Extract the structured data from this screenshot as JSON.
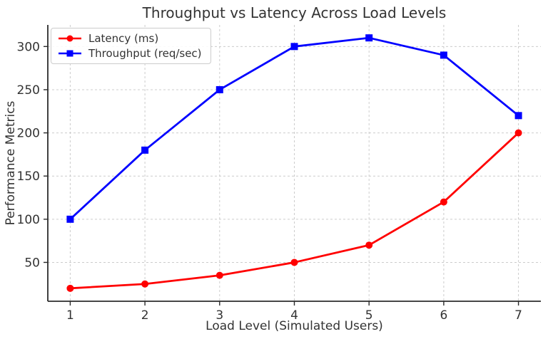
{
  "chart_data": {
    "type": "line",
    "title": "Throughput vs Latency Across Load Levels",
    "xlabel": "Load Level (Simulated Users)",
    "ylabel": "Performance Metrics",
    "x": [
      1,
      2,
      3,
      4,
      5,
      6,
      7
    ],
    "series": [
      {
        "name": "Latency (ms)",
        "color": "#ff0000",
        "marker": "circle",
        "values": [
          20,
          25,
          35,
          50,
          70,
          120,
          200
        ]
      },
      {
        "name": "Throughput (req/sec)",
        "color": "#0000ff",
        "marker": "square",
        "values": [
          100,
          180,
          250,
          300,
          310,
          290,
          220
        ]
      }
    ],
    "xticks": [
      1,
      2,
      3,
      4,
      5,
      6,
      7
    ],
    "yticks": [
      50,
      100,
      150,
      200,
      250,
      300
    ],
    "xlim": [
      0.7,
      7.3
    ],
    "ylim": [
      5,
      325
    ],
    "grid": true,
    "legend_position": "upper-left",
    "colors": {
      "text": "#333333",
      "spine": "#2b2b2b",
      "grid": "#cccccc",
      "background": "#ffffff"
    }
  }
}
